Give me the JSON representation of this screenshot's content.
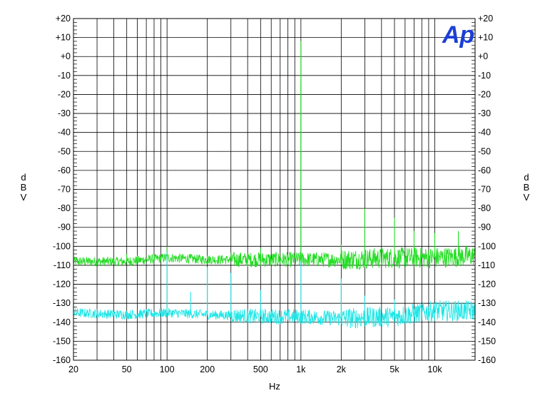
{
  "chart_data": {
    "type": "line",
    "title": "",
    "xlabel": "Hz",
    "ylabel": "dBV",
    "xscale": "log",
    "xlim": [
      20,
      20000
    ],
    "ylim": [
      -160,
      20
    ],
    "xticks": [
      20,
      50,
      100,
      200,
      500,
      1000,
      2000,
      5000,
      10000
    ],
    "xtick_labels": [
      "20",
      "50",
      "100",
      "200",
      "500",
      "1k",
      "2k",
      "5k",
      "10k"
    ],
    "yticks": [
      20,
      10,
      0,
      -10,
      -20,
      -30,
      -40,
      -50,
      -60,
      -70,
      -80,
      -90,
      -100,
      -110,
      -120,
      -130,
      -140,
      -150,
      -160
    ],
    "ytick_labels": [
      "+20",
      "+10",
      "+0",
      "-10",
      "-20",
      "-30",
      "-40",
      "-50",
      "-60",
      "-70",
      "-80",
      "-90",
      "-100",
      "-110",
      "-120",
      "-130",
      "-140",
      "-150",
      "-160"
    ],
    "grid": true,
    "logo_text": "Ap",
    "colors": {
      "green": "#22dd22",
      "cyan": "#22e6e6",
      "logo": "#1b3fd6",
      "grid": "#000000"
    },
    "series": [
      {
        "color": "green",
        "noise_floor": [
          [
            20,
            -108
          ],
          [
            50,
            -108
          ],
          [
            100,
            -106
          ],
          [
            200,
            -107
          ],
          [
            500,
            -107
          ],
          [
            1000,
            -107
          ],
          [
            2000,
            -107
          ],
          [
            5000,
            -106
          ],
          [
            10000,
            -106
          ],
          [
            20000,
            -105
          ]
        ],
        "peaks": [
          [
            50,
            -104
          ],
          [
            60,
            -105
          ],
          [
            100,
            -100
          ],
          [
            150,
            -104
          ],
          [
            200,
            -105
          ],
          [
            500,
            -101
          ],
          [
            1000,
            8
          ],
          [
            1000,
            -14
          ],
          [
            2000,
            -99
          ],
          [
            3000,
            -80
          ],
          [
            5000,
            -85
          ],
          [
            7000,
            -92
          ],
          [
            10000,
            -93
          ],
          [
            15000,
            -92
          ]
        ]
      },
      {
        "color": "cyan",
        "noise_floor": [
          [
            20,
            -135
          ],
          [
            50,
            -136
          ],
          [
            100,
            -135
          ],
          [
            200,
            -136
          ],
          [
            500,
            -137
          ],
          [
            1000,
            -137
          ],
          [
            2000,
            -138
          ],
          [
            5000,
            -137
          ],
          [
            10000,
            -134
          ],
          [
            20000,
            -134
          ]
        ],
        "peaks": [
          [
            100,
            -103
          ],
          [
            150,
            -124
          ],
          [
            200,
            -111
          ],
          [
            300,
            -114
          ],
          [
            500,
            -123
          ],
          [
            1000,
            -108
          ],
          [
            2000,
            -117
          ],
          [
            3000,
            -126
          ],
          [
            5000,
            -128
          ],
          [
            10000,
            -130
          ]
        ]
      }
    ]
  }
}
